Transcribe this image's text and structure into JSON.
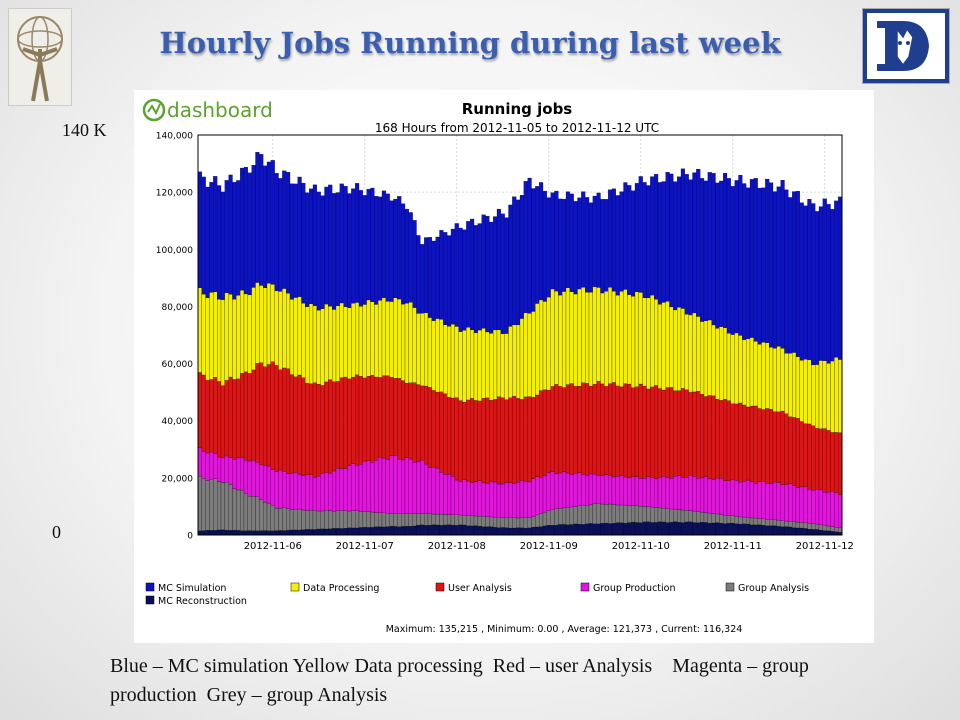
{
  "slide_title": "Hourly Jobs Running during  last week",
  "left_logo": "atlas-logo",
  "right_logo": "duke-blue-devil-logo",
  "outer_axis_labels": {
    "top": "140 K",
    "bottom": "0"
  },
  "caption": "Blue – MC simulation Yellow Data processing  Red – user Analysis    Magenta – group production  Grey – group Analysis",
  "dashboard_brand": "dashboard",
  "chart_data": {
    "type": "bar",
    "stacked": true,
    "title": "Running jobs",
    "subtitle": "168 Hours from 2012-11-05 to 2012-11-12 UTC",
    "xlabel": "",
    "ylabel": "",
    "ylim": [
      0,
      140000
    ],
    "yticks": [
      0,
      20000,
      40000,
      60000,
      80000,
      100000,
      120000,
      140000
    ],
    "ytick_labels": [
      "0",
      "20,000",
      "40,000",
      "60,000",
      "80,000",
      "100,000",
      "120,000",
      "140,000"
    ],
    "xtick_labels": [
      "2012-11-06",
      "2012-11-07",
      "2012-11-08",
      "2012-11-09",
      "2012-11-10",
      "2012-11-11",
      "2012-11-12"
    ],
    "xtick_hours": [
      19,
      43,
      67,
      91,
      115,
      139,
      163
    ],
    "hours": 168,
    "grid": true,
    "legend_position": "bottom",
    "control_points_hour": [
      0,
      6,
      12,
      16,
      20,
      30,
      40,
      50,
      54,
      58,
      68,
      80,
      86,
      92,
      104,
      116,
      128,
      140,
      152,
      160,
      167
    ],
    "series": [
      {
        "name": "MC Reconstruction",
        "color": "#0a0f5c",
        "values": [
          1500,
          1800,
          1500,
          1500,
          1500,
          2000,
          2500,
          3000,
          3000,
          3500,
          3500,
          2500,
          2500,
          3500,
          4000,
          4500,
          4500,
          4000,
          3000,
          2000,
          1000
        ]
      },
      {
        "name": "Group Analysis",
        "color": "#7c7c7c",
        "values": [
          18500,
          17000,
          13000,
          11000,
          8000,
          6500,
          6000,
          4500,
          4500,
          4000,
          3500,
          3500,
          3500,
          5500,
          7000,
          5500,
          4000,
          2500,
          2000,
          2000,
          1500
        ]
      },
      {
        "name": "Group Production",
        "color": "#e613e0",
        "values": [
          10000,
          8500,
          12000,
          12500,
          13000,
          12000,
          16000,
          20000,
          19000,
          18000,
          12000,
          12000,
          13000,
          13000,
          10000,
          10000,
          12000,
          12500,
          13000,
          12000,
          12000
        ]
      },
      {
        "name": "User Analysis",
        "color": "#e01414",
        "values": [
          26000,
          26000,
          30000,
          35000,
          37000,
          32000,
          31000,
          28000,
          27000,
          27000,
          28000,
          30000,
          29000,
          30000,
          32000,
          32000,
          30000,
          27000,
          25000,
          22000,
          21000
        ]
      },
      {
        "name": "Data Processing",
        "color": "#f5f000",
        "values": [
          29000,
          30000,
          28000,
          28000,
          27000,
          27000,
          25000,
          27000,
          28000,
          25000,
          25000,
          23000,
          30000,
          33000,
          33000,
          32000,
          27000,
          24000,
          22000,
          22000,
          26000
        ]
      },
      {
        "name": "MC Simulation",
        "color": "#0c12c8",
        "values": [
          40000,
          39000,
          43000,
          45000,
          41000,
          41000,
          41000,
          36000,
          34000,
          25000,
          36000,
          42000,
          46000,
          34000,
          32000,
          40000,
          49000,
          54000,
          57000,
          55000,
          55000
        ]
      }
    ],
    "legend_order": [
      "MC Simulation",
      "Data Processing",
      "User Analysis",
      "Group Production",
      "Group Analysis",
      "MC Reconstruction"
    ],
    "stats": "Maximum: 135,215 , Minimum: 0.00 , Average: 121,373 , Current: 116,324"
  }
}
